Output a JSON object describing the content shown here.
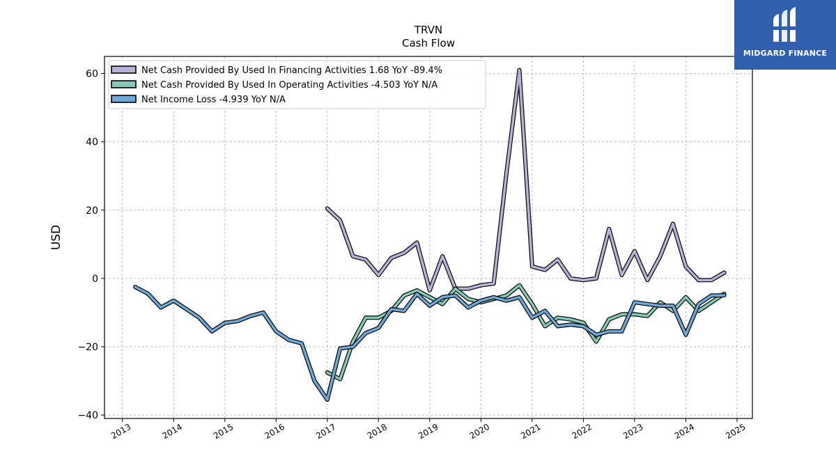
{
  "brand": {
    "name": "MIDGARD FINANCE",
    "bg_color": "#2f5fad"
  },
  "chart_data": {
    "type": "line",
    "title": "TRVN",
    "subtitle": "Cash Flow",
    "xlabel": "",
    "ylabel": "USD",
    "xlim": [
      2012.65,
      2025.3
    ],
    "ylim": [
      -41,
      65
    ],
    "x_ticks": [
      2013,
      2014,
      2015,
      2016,
      2017,
      2018,
      2019,
      2020,
      2021,
      2022,
      2023,
      2024,
      2025
    ],
    "x_tick_labels": [
      "2013",
      "2014",
      "2015",
      "2016",
      "2017",
      "2018",
      "2019",
      "2020",
      "2021",
      "2022",
      "2023",
      "2024",
      "2025"
    ],
    "y_ticks": [
      -40,
      -20,
      0,
      20,
      40,
      60
    ],
    "y_tick_labels": [
      "−40",
      "−20",
      "0",
      "20",
      "40",
      "60"
    ],
    "grid": true,
    "legend_position": "top-left",
    "series": [
      {
        "name": "Net Cash Provided By Used In Financing Activities  1.68 YoY -89.4%",
        "color": "#b7b2d6",
        "x": [
          2017.0,
          2017.25,
          2017.5,
          2017.75,
          2018.0,
          2018.25,
          2018.5,
          2018.75,
          2019.0,
          2019.25,
          2019.5,
          2019.75,
          2020.0,
          2020.25,
          2020.5,
          2020.75,
          2021.0,
          2021.25,
          2021.5,
          2021.75,
          2022.0,
          2022.25,
          2022.5,
          2022.75,
          2023.0,
          2023.25,
          2023.5,
          2023.75,
          2024.0,
          2024.25,
          2024.5,
          2024.75
        ],
        "y": [
          20.5,
          17.0,
          6.5,
          5.5,
          1.0,
          6.0,
          7.5,
          10.5,
          -3.5,
          6.5,
          -3.0,
          -3.0,
          -2.0,
          -1.5,
          31.0,
          61.0,
          3.5,
          2.5,
          5.5,
          0.0,
          -0.5,
          0.0,
          14.5,
          1.0,
          8.0,
          -0.5,
          6.5,
          16.0,
          3.5,
          -0.5,
          -0.5,
          1.7
        ]
      },
      {
        "name": "Net Cash Provided By Used In Operating Activities  -4.503 YoY N/A",
        "color": "#86c9b8",
        "x": [
          2017.0,
          2017.25,
          2017.5,
          2017.75,
          2018.0,
          2018.25,
          2018.5,
          2018.75,
          2019.0,
          2019.25,
          2019.5,
          2019.75,
          2020.0,
          2020.25,
          2020.5,
          2020.75,
          2021.0,
          2021.25,
          2021.5,
          2021.75,
          2022.0,
          2022.25,
          2022.5,
          2022.75,
          2023.0,
          2023.25,
          2023.5,
          2023.75,
          2024.0,
          2024.25,
          2024.5,
          2024.75
        ],
        "y": [
          -27.5,
          -29.5,
          -18.5,
          -11.5,
          -11.5,
          -9.5,
          -5.0,
          -3.5,
          -5.5,
          -7.5,
          -3.0,
          -6.0,
          -7.0,
          -6.0,
          -5.0,
          -2.0,
          -7.5,
          -14.0,
          -11.5,
          -12.0,
          -13.0,
          -18.5,
          -12.0,
          -10.5,
          -10.5,
          -11.0,
          -7.0,
          -9.5,
          -5.5,
          -9.5,
          -7.0,
          -4.5
        ]
      },
      {
        "name": "Net Income Loss  -4.939 YoY N/A",
        "color": "#6fa8d6",
        "x": [
          2013.25,
          2013.5,
          2013.75,
          2014.0,
          2014.25,
          2014.5,
          2014.75,
          2015.0,
          2015.25,
          2015.5,
          2015.75,
          2016.0,
          2016.25,
          2016.5,
          2016.75,
          2017.0,
          2017.25,
          2017.5,
          2017.75,
          2018.0,
          2018.25,
          2018.5,
          2018.75,
          2019.0,
          2019.25,
          2019.5,
          2019.75,
          2020.0,
          2020.25,
          2020.5,
          2020.75,
          2021.0,
          2021.25,
          2021.5,
          2021.75,
          2022.0,
          2022.25,
          2022.5,
          2022.75,
          2023.0,
          2023.25,
          2023.5,
          2023.75,
          2024.0,
          2024.25,
          2024.5,
          2024.75
        ],
        "y": [
          -2.5,
          -4.5,
          -8.5,
          -6.5,
          -9.0,
          -11.5,
          -15.5,
          -13.0,
          -12.5,
          -11.0,
          -10.0,
          -15.5,
          -18.0,
          -19.0,
          -30.0,
          -35.5,
          -20.5,
          -20.0,
          -16.0,
          -14.5,
          -9.0,
          -9.5,
          -4.5,
          -8.0,
          -5.5,
          -5.0,
          -8.5,
          -6.5,
          -5.5,
          -6.5,
          -5.5,
          -11.5,
          -9.5,
          -14.0,
          -13.5,
          -14.0,
          -16.5,
          -15.5,
          -15.5,
          -7.0,
          -7.5,
          -8.0,
          -8.0,
          -16.5,
          -7.5,
          -5.0,
          -4.939
        ]
      }
    ]
  }
}
